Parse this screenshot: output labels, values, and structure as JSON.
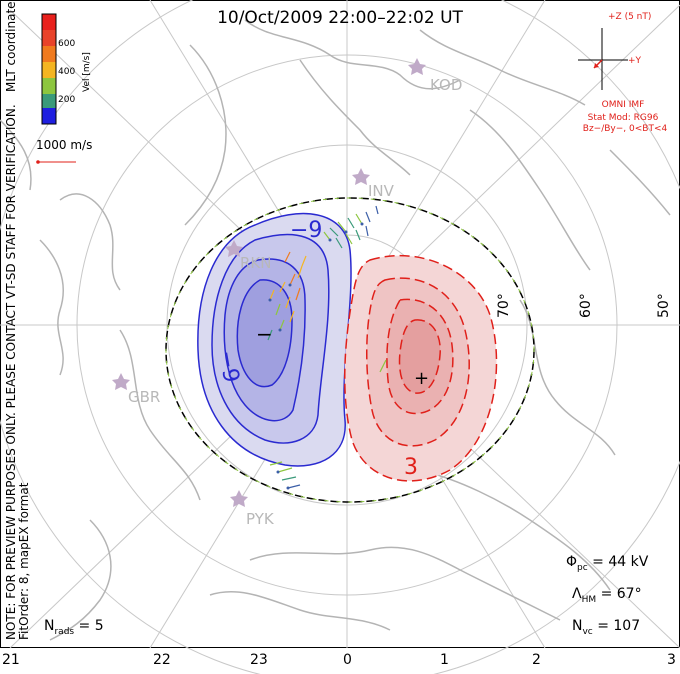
{
  "title": "10/Oct/2009 22:00–22:02 UT",
  "side_note": {
    "line1": "NOTE: FOR PREVIEW PURPOSES ONLY. PLEASE CONTACT VT-SD STAFF FOR VERIFICATION.",
    "line2": "FitOrder: 8, mapEX format"
  },
  "colorbar": {
    "top_label": "MLT coordinates",
    "label": "Vel [m/s]",
    "ticks": [
      "600",
      "400",
      "200"
    ],
    "colors": [
      "#e8201c",
      "#f07a1e",
      "#f4b521",
      "#8dc63f",
      "#3a9a7a",
      "#3c5fa8",
      "#1f1fe0"
    ]
  },
  "scale_vector": {
    "label": "1000 m/s",
    "color": "#e0201a"
  },
  "imf": {
    "z_label": "+Z (5 nT)",
    "y_label": "+Y",
    "source": "OMNI IMF",
    "model": "Stat Mod: RG96",
    "condition": "Bz−/By−, 0<BT<4"
  },
  "stations": [
    "KOD",
    "INV",
    "RKN",
    "GBR",
    "PYK"
  ],
  "lat_labels": [
    "70°",
    "60°",
    "50°"
  ],
  "contour_labels": {
    "neg_outer": "−9",
    "neg_inner": "−9",
    "neg_center": "−",
    "pos": "3",
    "pos_center": "+"
  },
  "stats": {
    "phi_symbol": "Φ",
    "phi_sub": "pc",
    "phi_value": " = 44 kV",
    "lambda_symbol": "Λ",
    "lambda_sub": "HM",
    "lambda_value": " = 67°",
    "nvc_symbol": "N",
    "nvc_sub": "vc",
    "nvc_value": " = 107",
    "nrads_symbol": "N",
    "nrads_sub": "rads",
    "nrads_value": " = 5"
  },
  "mlt_ticks": [
    "21",
    "22",
    "23",
    "0",
    "1",
    "2",
    "3"
  ],
  "colors": {
    "negative": "#2a2ad0",
    "positive": "#e0201a",
    "coast": "#b4b4b4",
    "grid": "#c8c8c8"
  }
}
